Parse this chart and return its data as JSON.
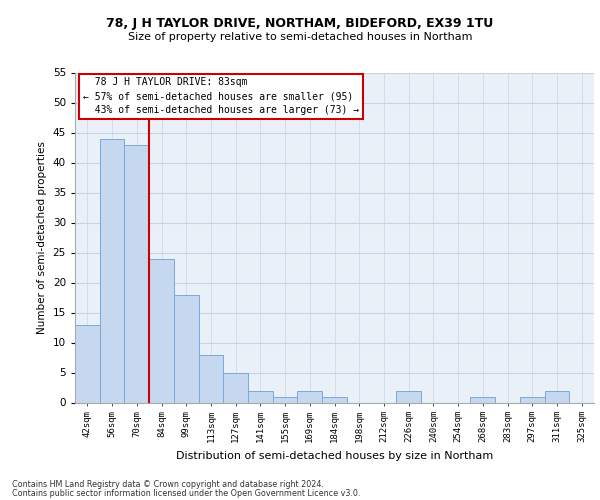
{
  "title1": "78, J H TAYLOR DRIVE, NORTHAM, BIDEFORD, EX39 1TU",
  "title2": "Size of property relative to semi-detached houses in Northam",
  "xlabel": "Distribution of semi-detached houses by size in Northam",
  "ylabel": "Number of semi-detached properties",
  "categories": [
    "42sqm",
    "56sqm",
    "70sqm",
    "84sqm",
    "99sqm",
    "113sqm",
    "127sqm",
    "141sqm",
    "155sqm",
    "169sqm",
    "184sqm",
    "198sqm",
    "212sqm",
    "226sqm",
    "240sqm",
    "254sqm",
    "268sqm",
    "283sqm",
    "297sqm",
    "311sqm",
    "325sqm"
  ],
  "values": [
    13,
    44,
    43,
    24,
    18,
    8,
    5,
    2,
    1,
    2,
    1,
    0,
    0,
    2,
    0,
    0,
    1,
    0,
    1,
    2,
    0
  ],
  "bar_color": "#c5d8f0",
  "bar_edge_color": "#7aaadb",
  "pct_smaller": 57,
  "pct_smaller_count": 95,
  "pct_larger": 43,
  "pct_larger_count": 73,
  "vline_color": "#cc0000",
  "box_edge_color": "#cc0000",
  "ylim": [
    0,
    55
  ],
  "yticks": [
    0,
    5,
    10,
    15,
    20,
    25,
    30,
    35,
    40,
    45,
    50,
    55
  ],
  "footnote1": "Contains HM Land Registry data © Crown copyright and database right 2024.",
  "footnote2": "Contains public sector information licensed under the Open Government Licence v3.0.",
  "bg_color": "#eaf0f8",
  "grid_color": "#c8d4e4"
}
